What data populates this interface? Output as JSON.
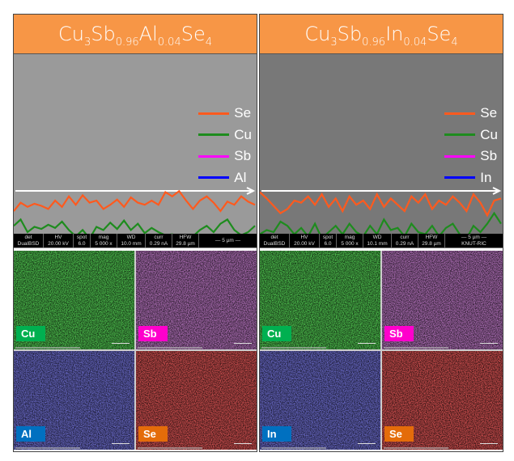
{
  "panels": [
    {
      "title_parts": [
        "Cu",
        "3",
        "Sb",
        "0.96",
        "Al",
        "0.04",
        "Se",
        "4"
      ],
      "sem_background": "#9a9a9a",
      "legend": [
        {
          "label": "Se",
          "color": "#FF5A1E"
        },
        {
          "label": "Cu",
          "color": "#1E8C1E"
        },
        {
          "label": "Sb",
          "color": "#FF00FF"
        },
        {
          "label": "Al",
          "color": "#0000FF"
        }
      ],
      "profiles": {
        "Se": [
          70,
          78,
          74,
          77,
          75,
          72,
          80,
          74,
          84,
          76,
          85,
          78,
          80,
          72,
          76,
          81,
          74,
          83,
          78,
          76,
          80,
          76,
          88,
          84,
          89,
          80,
          72,
          80,
          84,
          78,
          70,
          79,
          76,
          84,
          79,
          76
        ],
        "Cu": [
          56,
          62,
          50,
          55,
          53,
          57,
          54,
          60,
          52,
          46,
          52,
          44,
          55,
          52,
          59,
          53,
          61,
          52,
          58,
          49,
          54,
          50,
          47,
          48,
          45,
          44,
          46,
          52,
          56,
          50,
          58,
          62,
          52,
          47,
          50,
          56
        ],
        "Sb": [
          18,
          15,
          17,
          13,
          16,
          15,
          17,
          14,
          18,
          15,
          16,
          14,
          17,
          19,
          15,
          16,
          14,
          18,
          16,
          17,
          15,
          14,
          16,
          18,
          15,
          16,
          14,
          17,
          13,
          16,
          18,
          15,
          16,
          17,
          15,
          16
        ],
        "Al": [
          6,
          4,
          5,
          3,
          5,
          4,
          3,
          6,
          2,
          7,
          3,
          5,
          4,
          6,
          3,
          4,
          5,
          2,
          6,
          4,
          7,
          3,
          5,
          4,
          8,
          6,
          2,
          5,
          3,
          4,
          6,
          3,
          5,
          4,
          2,
          4
        ]
      },
      "info_bar": {
        "headers": [
          "det",
          "HV",
          "spot",
          "mag",
          "WD",
          "curr",
          "HFW"
        ],
        "values": [
          "DualBSD",
          "20.00 kV",
          "6.0",
          "5 000 x",
          "10.0 mm",
          "0.29 nA",
          "29.8 µm"
        ],
        "scale_label": "5 µm",
        "footer": ""
      },
      "maps": [
        {
          "label": "Cu",
          "label_color": "#00B050",
          "tint": "#4fc24f"
        },
        {
          "label": "Sb",
          "label_color": "#FF00CC",
          "tint": "#b070b8"
        },
        {
          "label": "Al",
          "label_color": "#0070C0",
          "tint": "#6a6ac8"
        },
        {
          "label": "Se",
          "label_color": "#E46C0A",
          "tint": "#d05050"
        }
      ]
    },
    {
      "title_parts": [
        "Cu",
        "3",
        "Sb",
        "0.96",
        "In",
        "0.04",
        "Se",
        "4"
      ],
      "sem_background": "#787878",
      "legend": [
        {
          "label": "Se",
          "color": "#FF5A1E"
        },
        {
          "label": "Cu",
          "color": "#1E8C1E"
        },
        {
          "label": "Sb",
          "color": "#FF00FF"
        },
        {
          "label": "In",
          "color": "#0000FF"
        }
      ],
      "profiles": {
        "Se": [
          88,
          82,
          75,
          68,
          72,
          80,
          78,
          84,
          76,
          86,
          74,
          82,
          70,
          84,
          76,
          80,
          72,
          86,
          74,
          82,
          76,
          70,
          84,
          78,
          86,
          72,
          80,
          76,
          84,
          78,
          70,
          86,
          78,
          66,
          80,
          82
        ],
        "Cu": [
          48,
          52,
          50,
          60,
          56,
          48,
          54,
          46,
          58,
          44,
          50,
          56,
          48,
          58,
          50,
          46,
          56,
          48,
          62,
          52,
          54,
          46,
          58,
          50,
          48,
          56,
          46,
          54,
          58,
          48,
          44,
          56,
          50,
          58,
          68,
          58
        ],
        "Sb": [
          14,
          17,
          16,
          18,
          17,
          19,
          18,
          17,
          19,
          18,
          17,
          16,
          18,
          17,
          20,
          18,
          16,
          17,
          16,
          17,
          18,
          17,
          16,
          15,
          17,
          16,
          18,
          17,
          16,
          18,
          17,
          16,
          18,
          17,
          16,
          15
        ],
        "In": [
          2,
          2,
          3,
          2,
          2,
          3,
          2,
          4,
          3,
          2,
          3,
          2,
          3,
          4,
          3,
          2,
          3,
          2,
          3,
          4,
          2,
          3,
          2,
          2,
          3,
          2,
          3,
          4,
          3,
          2,
          3,
          2,
          3,
          2,
          2,
          3
        ]
      },
      "info_bar": {
        "headers": [
          "det",
          "HV",
          "spot",
          "mag",
          "WD",
          "curr",
          "HFW"
        ],
        "values": [
          "DualBSD",
          "20.00 kV",
          "6.0",
          "5 000 x",
          "10.1 mm",
          "0.29 nA",
          "29.8 µm"
        ],
        "scale_label": "5 µm",
        "footer": "KNUT-RIC"
      },
      "maps": [
        {
          "label": "Cu",
          "label_color": "#00B050",
          "tint": "#4fc24f"
        },
        {
          "label": "Sb",
          "label_color": "#FF00CC",
          "tint": "#b070b8"
        },
        {
          "label": "In",
          "label_color": "#0070C0",
          "tint": "#6a6ac8"
        },
        {
          "label": "Se",
          "label_color": "#E46C0A",
          "tint": "#d05050"
        }
      ]
    }
  ]
}
